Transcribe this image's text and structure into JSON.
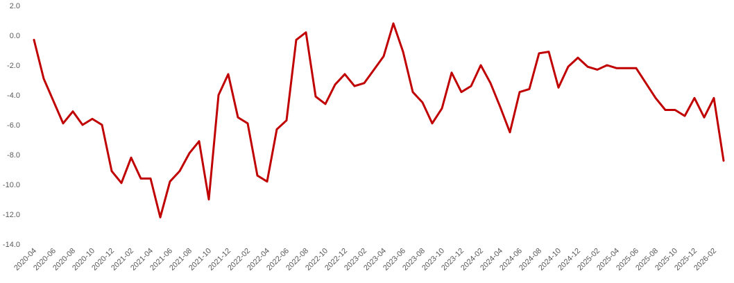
{
  "chart_data": {
    "type": "line",
    "categories": [
      "2020-04",
      null,
      "2020-06",
      null,
      "2020-08",
      null,
      "2020-10",
      null,
      "2020-12",
      null,
      "2021-02",
      null,
      "2021-04",
      null,
      "2021-06",
      null,
      "2021-08",
      null,
      "2021-10",
      null,
      "2021-12",
      null,
      "2022-02",
      null,
      "2022-04",
      null,
      "2022-06",
      null,
      "2022-08",
      null,
      "2022-10",
      null,
      "2022-12",
      null,
      "2023-02",
      null,
      "2023-04",
      null,
      "2023-06",
      null,
      "2023-08",
      null,
      "2023-10",
      null,
      "2023-12",
      null,
      "2024-02",
      null,
      "2024-04",
      null,
      "2024-06",
      null,
      "2024-08",
      null,
      "2024-10",
      null,
      "2024-12",
      null,
      "2025-02",
      null,
      "2025-04",
      null,
      "2025-06",
      null,
      "2025-08",
      null,
      "2025-10",
      null,
      "2025-12",
      null,
      "2026-02",
      null
    ],
    "series": [
      {
        "color": "#c00000",
        "values": [
          -0.3,
          -2.9,
          -4.4,
          -5.9,
          -5.1,
          -6.0,
          -5.6,
          -6.0,
          -9.1,
          -9.9,
          -8.2,
          -9.6,
          -9.6,
          -12.2,
          -9.8,
          -9.1,
          -7.9,
          -7.1,
          -11.0,
          -4.0,
          -2.6,
          -5.5,
          -5.9,
          -9.4,
          -9.8,
          -6.3,
          -5.7,
          -0.3,
          0.2,
          -4.1,
          -4.6,
          -3.3,
          -2.6,
          -3.4,
          -3.2,
          -2.3,
          -1.4,
          0.8,
          -1.1,
          -3.8,
          -4.5,
          -5.9,
          -4.9,
          -2.5,
          -3.8,
          -3.4,
          -2.0,
          -3.2,
          -4.8,
          -6.5,
          -3.8,
          -3.6,
          -1.2,
          -1.1,
          -3.5,
          -2.1,
          -1.5,
          -2.1,
          -2.3,
          -2.0,
          -2.2,
          -2.2,
          -2.2,
          -3.2,
          -4.2,
          -5.0,
          -5.0,
          -5.4,
          -4.2,
          -5.5,
          -4.2,
          -8.4
        ]
      }
    ],
    "ylim": [
      -14,
      2
    ],
    "yticks": [
      {
        "value": 2,
        "label": "2.0"
      },
      {
        "value": 0,
        "label": "0.0"
      },
      {
        "value": -2,
        "label": "-2.0"
      },
      {
        "value": -4,
        "label": "-4.0"
      },
      {
        "value": -6,
        "label": "-6.0"
      },
      {
        "value": -8,
        "label": "-8.0"
      },
      {
        "value": -10,
        "label": "-10.0"
      },
      {
        "value": -12,
        "label": "-12.0"
      },
      {
        "value": -14,
        "label": "-14.0"
      }
    ]
  }
}
